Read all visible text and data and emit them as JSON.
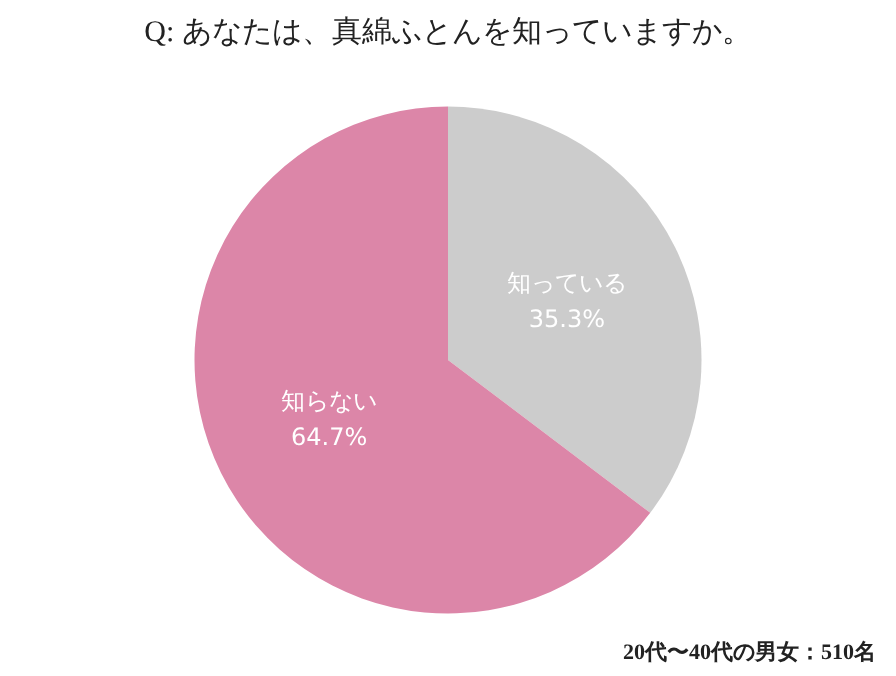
{
  "chart_data": {
    "type": "pie",
    "title": "Q: あなたは、真綿ふとんを知っていますか。",
    "categories": [
      "知っている",
      "知らない"
    ],
    "values": [
      35.3,
      64.7
    ],
    "value_labels": [
      "35.3%",
      "64.7%"
    ],
    "colors": [
      "#cccccc",
      "#dc86a8"
    ],
    "legend": false,
    "annotations": [
      "20代〜40代の男女：510名"
    ]
  }
}
